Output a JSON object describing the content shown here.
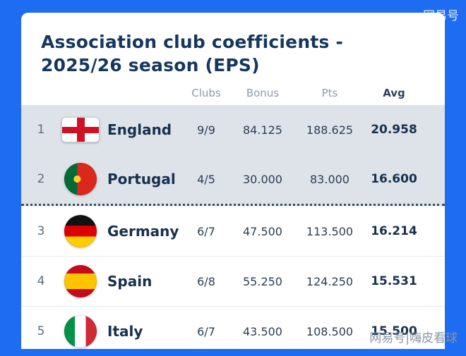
{
  "watermarks": {
    "top_right": "网易号",
    "bottom_right": "网易号|嗨皮看球"
  },
  "table": {
    "title_line1": "Association club coefficients -",
    "title_line2": "2025/26 season (EPS)",
    "headers": {
      "clubs": "Clubs",
      "bonus": "Bonus",
      "pts": "Pts",
      "avg": "Avg"
    },
    "rows": [
      {
        "rank": "1",
        "flag": "england",
        "country": "England",
        "clubs": "9/9",
        "bonus": "84.125",
        "pts": "188.625",
        "avg": "20.958",
        "highlighted": true,
        "dotted_below": false
      },
      {
        "rank": "2",
        "flag": "portugal",
        "country": "Portugal",
        "clubs": "4/5",
        "bonus": "30.000",
        "pts": "83.000",
        "avg": "16.600",
        "highlighted": true,
        "dotted_below": true
      },
      {
        "rank": "3",
        "flag": "germany",
        "country": "Germany",
        "clubs": "6/7",
        "bonus": "47.500",
        "pts": "113.500",
        "avg": "16.214",
        "highlighted": false,
        "dotted_below": false
      },
      {
        "rank": "4",
        "flag": "spain",
        "country": "Spain",
        "clubs": "6/8",
        "bonus": "55.250",
        "pts": "124.250",
        "avg": "15.531",
        "highlighted": false,
        "dotted_below": false
      },
      {
        "rank": "5",
        "flag": "italy",
        "country": "Italy",
        "clubs": "6/7",
        "bonus": "43.500",
        "pts": "108.500",
        "avg": "15.500",
        "highlighted": false,
        "dotted_below": false
      }
    ]
  },
  "colors": {
    "accent_blue": "#1d6cf2",
    "highlight_row": "#dee3e9",
    "title_navy": "#14375f"
  }
}
